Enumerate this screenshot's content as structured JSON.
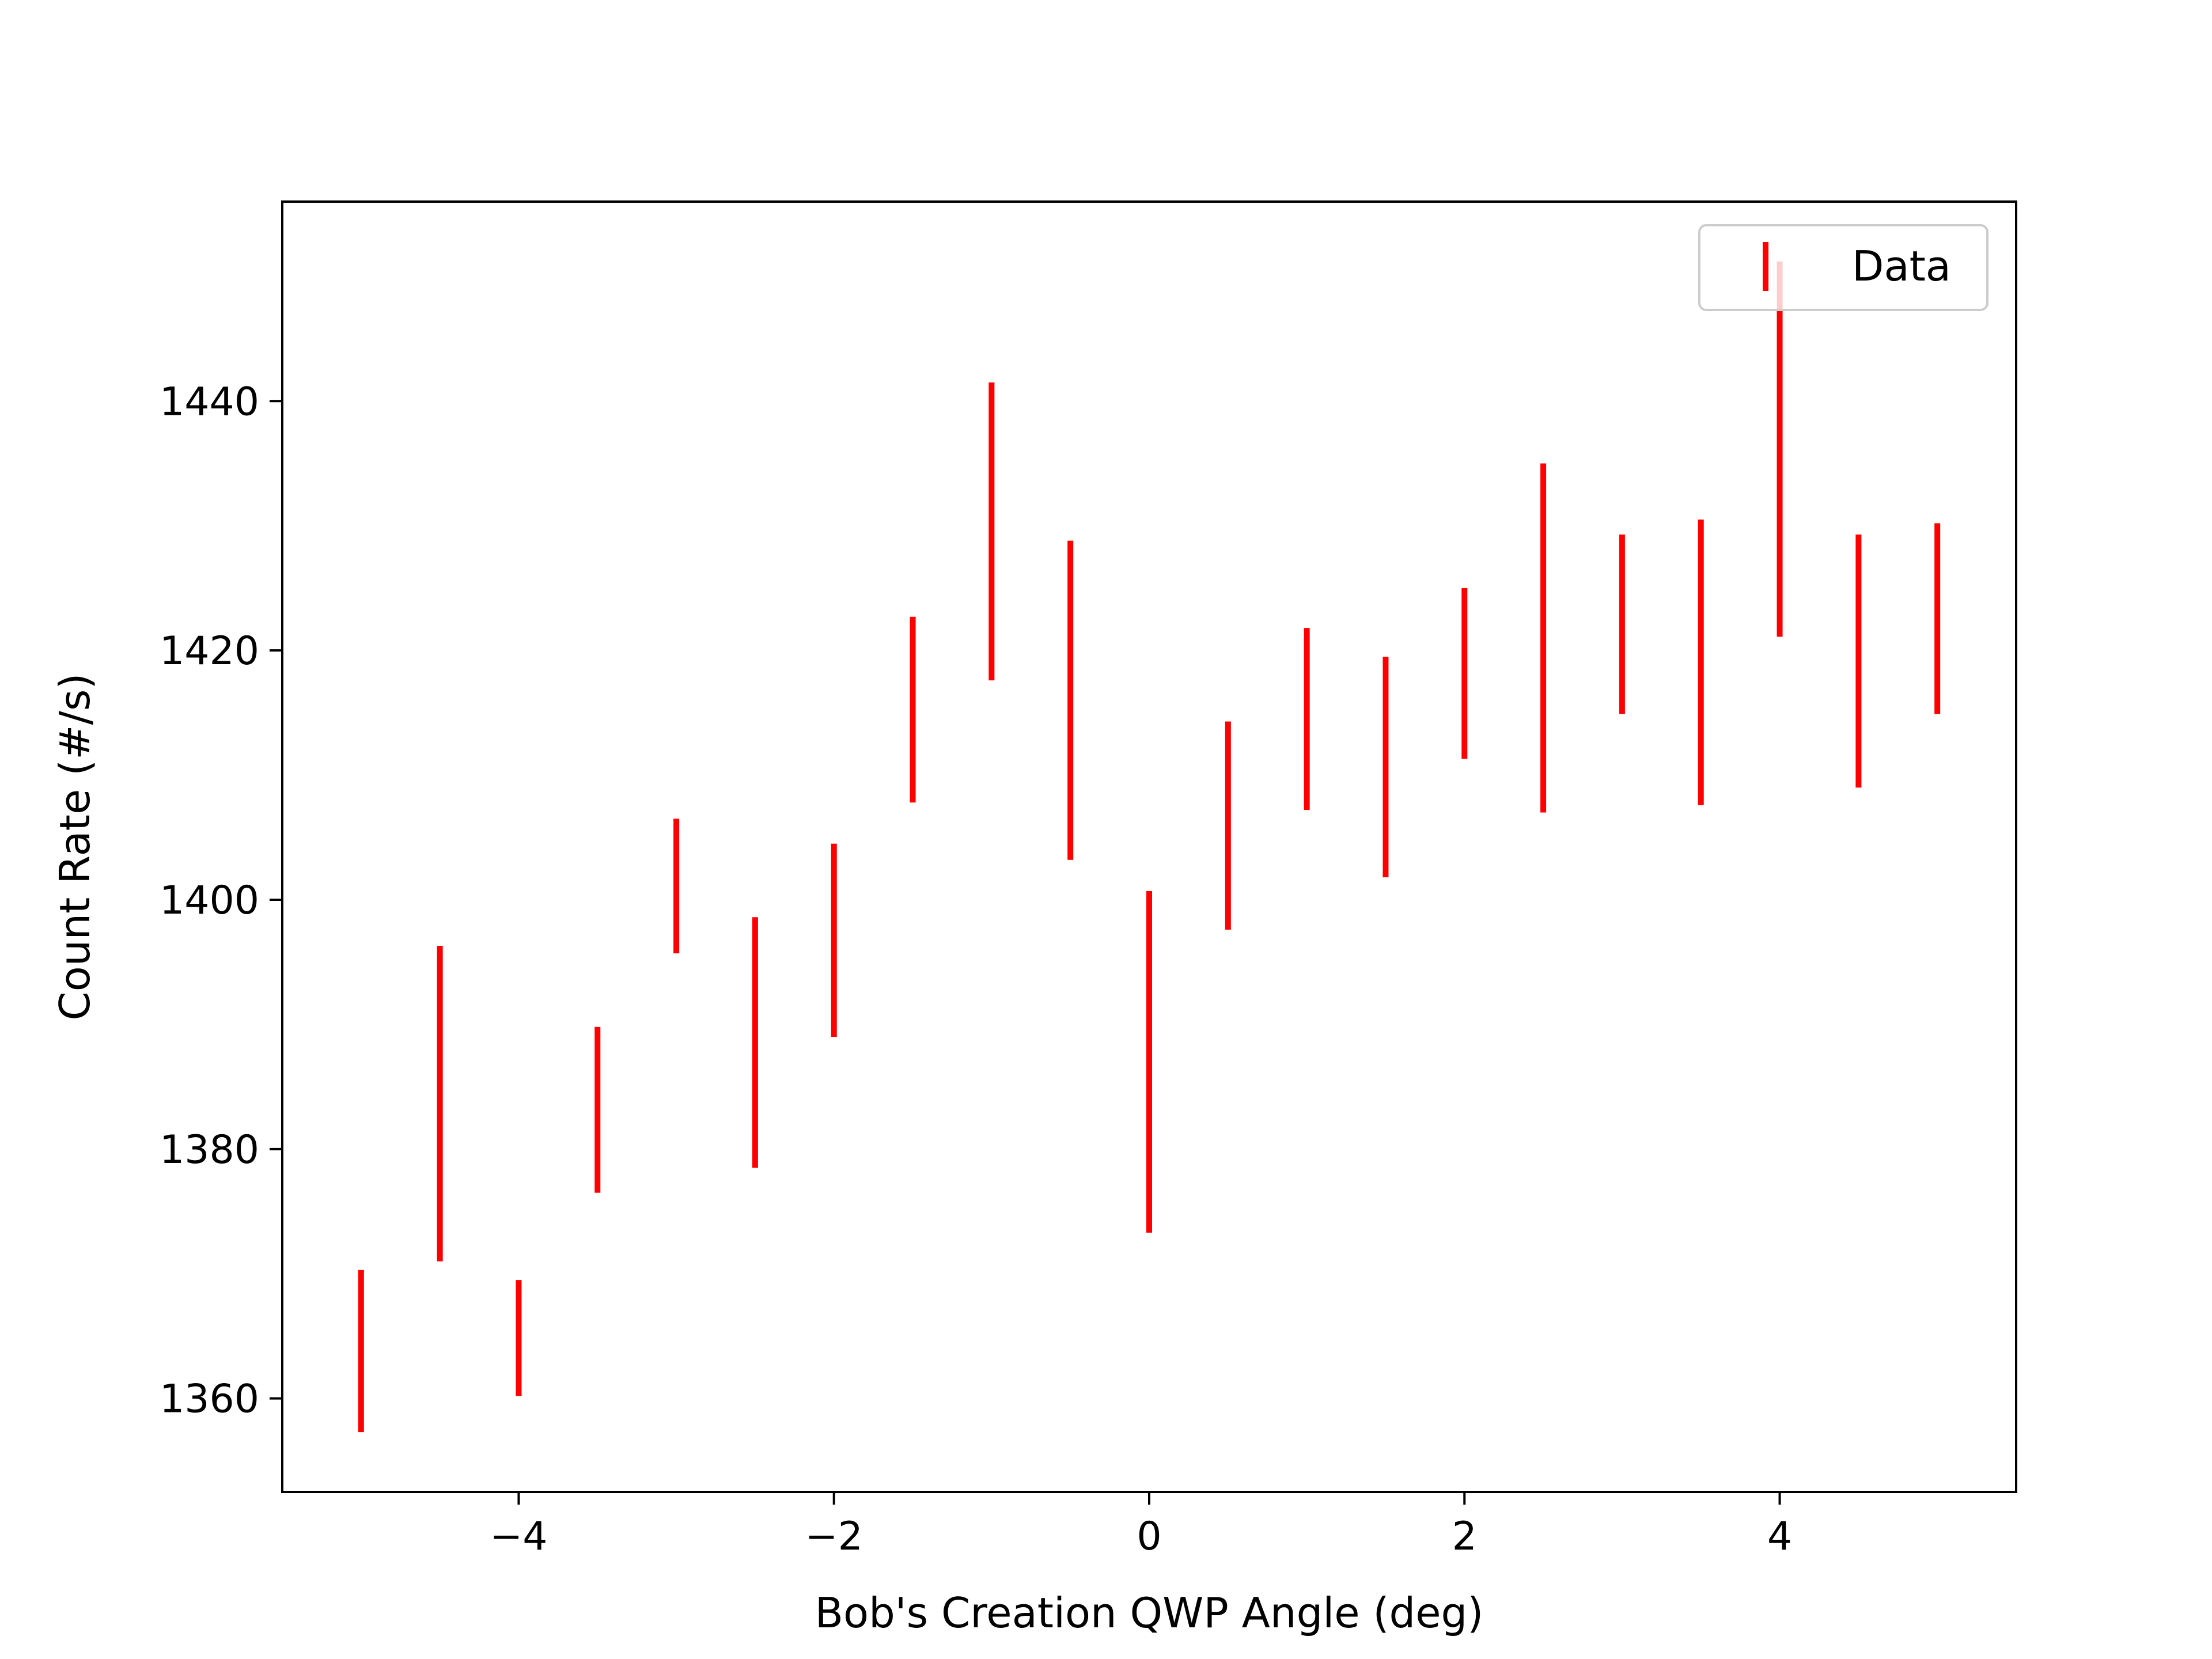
{
  "chart_data": {
    "type": "errorbar",
    "title": "",
    "xlabel": "Bob's Creation QWP Angle (deg)",
    "ylabel": "Count Rate (#/s)",
    "xlim": [
      -5.5,
      5.5
    ],
    "ylim": [
      1352.5,
      1456.0
    ],
    "x_ticks": [
      -4,
      -2,
      0,
      2,
      4
    ],
    "x_tick_labels": [
      "−4",
      "−2",
      "0",
      "2",
      "4"
    ],
    "y_ticks": [
      1360,
      1380,
      1400,
      1420,
      1440
    ],
    "y_tick_labels": [
      "1360",
      "1380",
      "1400",
      "1420",
      "1440"
    ],
    "grid": false,
    "legend": {
      "position": "top-right",
      "entries": [
        "Data"
      ]
    },
    "series": [
      {
        "name": "Data",
        "color": "#ff0000",
        "points": [
          {
            "x": -5.0,
            "y_low": 1357.3,
            "y_high": 1370.3
          },
          {
            "x": -4.5,
            "y_low": 1371.0,
            "y_high": 1396.3
          },
          {
            "x": -4.0,
            "y_low": 1360.2,
            "y_high": 1369.5
          },
          {
            "x": -3.5,
            "y_low": 1376.5,
            "y_high": 1389.8
          },
          {
            "x": -3.0,
            "y_low": 1395.7,
            "y_high": 1406.5
          },
          {
            "x": -2.5,
            "y_low": 1378.5,
            "y_high": 1398.6
          },
          {
            "x": -2.0,
            "y_low": 1389.0,
            "y_high": 1404.5
          },
          {
            "x": -1.5,
            "y_low": 1407.8,
            "y_high": 1422.7
          },
          {
            "x": -1.0,
            "y_low": 1417.6,
            "y_high": 1441.5
          },
          {
            "x": -0.5,
            "y_low": 1403.2,
            "y_high": 1428.8
          },
          {
            "x": 0.0,
            "y_low": 1373.3,
            "y_high": 1400.7
          },
          {
            "x": 0.5,
            "y_low": 1397.6,
            "y_high": 1414.3
          },
          {
            "x": 1.0,
            "y_low": 1407.2,
            "y_high": 1421.8
          },
          {
            "x": 1.5,
            "y_low": 1401.8,
            "y_high": 1419.5
          },
          {
            "x": 2.0,
            "y_low": 1411.3,
            "y_high": 1425.0
          },
          {
            "x": 2.5,
            "y_low": 1407.0,
            "y_high": 1435.0
          },
          {
            "x": 3.0,
            "y_low": 1414.9,
            "y_high": 1429.3
          },
          {
            "x": 3.5,
            "y_low": 1407.6,
            "y_high": 1430.5
          },
          {
            "x": 4.0,
            "y_low": 1421.1,
            "y_high": 1451.2
          },
          {
            "x": 4.5,
            "y_low": 1409.0,
            "y_high": 1429.3
          },
          {
            "x": 5.0,
            "y_low": 1414.9,
            "y_high": 1430.2
          }
        ]
      }
    ]
  }
}
